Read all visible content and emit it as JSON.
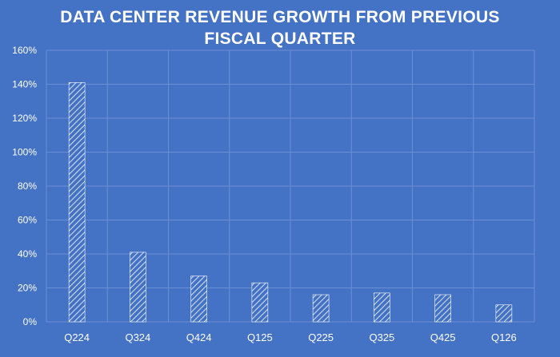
{
  "chart_data": {
    "type": "bar",
    "title_lines": [
      "DATA CENTER REVENUE GROWTH FROM PREVIOUS",
      "FISCAL  QUARTER"
    ],
    "categories": [
      "Q224",
      "Q324",
      "Q424",
      "Q125",
      "Q225",
      "Q325",
      "Q425",
      "Q126"
    ],
    "values": [
      141,
      41,
      27,
      23,
      16,
      17,
      16,
      10
    ],
    "unit": "%",
    "ylim": [
      0,
      160
    ],
    "yticks": [
      "0%",
      "20%",
      "40%",
      "60%",
      "80%",
      "100%",
      "120%",
      "140%",
      "160%"
    ],
    "xlabel": "",
    "ylabel": "",
    "grid": true,
    "legend": "none",
    "bar_style": "white diagonal hatch"
  },
  "colors": {
    "background": "#4472c4",
    "gridline": "#6b8fd3",
    "text": "#ffffff",
    "hatch": "#ffffff"
  }
}
